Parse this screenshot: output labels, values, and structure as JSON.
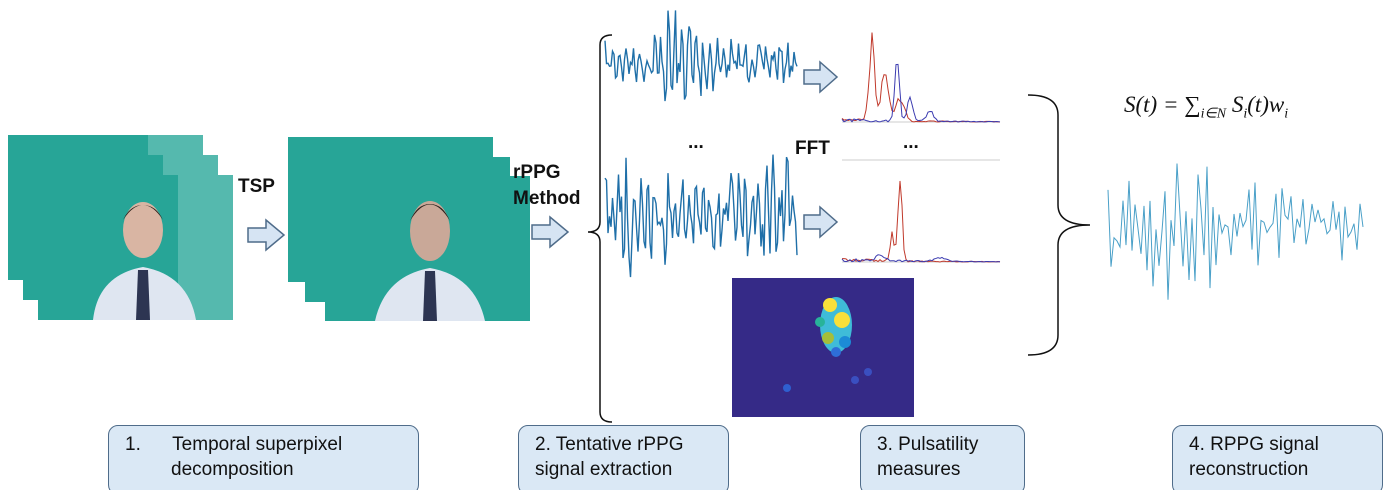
{
  "labels": {
    "tsp": "TSP",
    "rppg": [
      "rPPG",
      "Method"
    ],
    "dots_left": "...",
    "fft": "FFT",
    "dots_right": "..."
  },
  "formula": {
    "lhs": "S(t) = ",
    "sum": "∑",
    "sum_sub": "i∈N",
    "term": "S",
    "term_sub": "i",
    "rest": "(t)w",
    "w_sub": "i"
  },
  "steps": [
    {
      "lines": [
        "1.      Temporal superpixel",
        "decomposition"
      ]
    },
    {
      "lines": [
        "2. Tentative rPPG",
        "signal extraction"
      ]
    },
    {
      "lines": [
        "3. Pulsatility",
        "measures"
      ]
    },
    {
      "lines": [
        "4. RPPG signal",
        "reconstruction"
      ]
    }
  ]
}
